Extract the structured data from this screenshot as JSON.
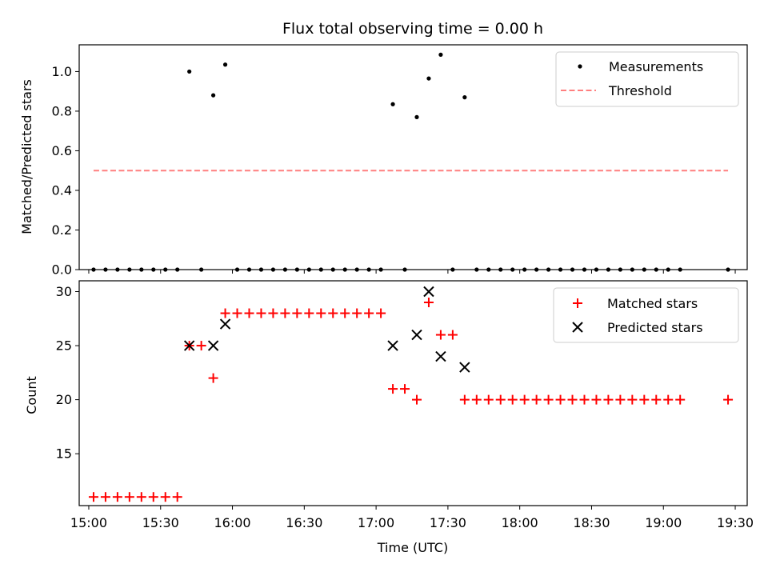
{
  "chart_data": [
    {
      "type": "scatter",
      "title": "Flux total observing time = 0.00 h",
      "xlabel": "",
      "ylabel": "Matched/Predicted stars",
      "ylim": [
        0,
        1.135
      ],
      "yticks": [
        0.0,
        0.2,
        0.4,
        0.6,
        0.8,
        1.0
      ],
      "ytick_labels": [
        "0.0",
        "0.2",
        "0.4",
        "0.6",
        "0.8",
        "1.0"
      ],
      "legend_position": "top-right",
      "grid": false,
      "series": [
        {
          "name": "Measurements",
          "kind": "points",
          "color": "#000000",
          "x": [
            "15:02",
            "15:07",
            "15:12",
            "15:17",
            "15:22",
            "15:27",
            "15:32",
            "15:37",
            "15:42",
            "15:47",
            "15:52",
            "15:57",
            "16:02",
            "16:07",
            "16:12",
            "16:17",
            "16:22",
            "16:27",
            "16:32",
            "16:37",
            "16:42",
            "16:47",
            "16:52",
            "16:57",
            "17:02",
            "17:07",
            "17:12",
            "17:17",
            "17:22",
            "17:27",
            "17:32",
            "17:37",
            "17:42",
            "17:47",
            "17:52",
            "17:57",
            "18:02",
            "18:07",
            "18:12",
            "18:17",
            "18:22",
            "18:27",
            "18:32",
            "18:37",
            "18:42",
            "18:47",
            "18:52",
            "18:57",
            "19:02",
            "19:07",
            "19:27"
          ],
          "y": [
            0,
            0,
            0,
            0,
            0,
            0,
            0,
            0,
            1.0,
            0,
            0.88,
            1.035,
            0,
            0,
            0,
            0,
            0,
            0,
            0,
            0,
            0,
            0,
            0,
            0,
            0,
            0.835,
            0,
            0.77,
            0.965,
            1.085,
            0,
            0.87,
            0,
            0,
            0,
            0,
            0,
            0,
            0,
            0,
            0,
            0,
            0,
            0,
            0,
            0,
            0,
            0,
            0,
            0,
            0
          ]
        },
        {
          "name": "Threshold",
          "kind": "dashed-line",
          "color": "#ff7f7f",
          "x": [
            "15:02",
            "19:27"
          ],
          "y": [
            0.5,
            0.5
          ]
        }
      ]
    },
    {
      "type": "scatter",
      "title": "",
      "xlabel": "Time (UTC)",
      "ylabel": "Count",
      "ylim": [
        10.2,
        31.0
      ],
      "yticks": [
        15,
        20,
        25,
        30
      ],
      "ytick_labels": [
        "15",
        "20",
        "25",
        "30"
      ],
      "xlim": [
        "14:56",
        "19:35"
      ],
      "xticks": [
        "15:00",
        "15:30",
        "16:00",
        "16:30",
        "17:00",
        "17:30",
        "18:00",
        "18:30",
        "19:00",
        "19:30"
      ],
      "xtick_labels": [
        "15:00",
        "15:30",
        "16:00",
        "16:30",
        "17:00",
        "17:30",
        "18:00",
        "18:30",
        "19:00",
        "19:30"
      ],
      "legend_position": "top-right",
      "grid": false,
      "series": [
        {
          "name": "Matched stars",
          "kind": "plus",
          "color": "#ff0000",
          "x": [
            "15:02",
            "15:07",
            "15:12",
            "15:17",
            "15:22",
            "15:27",
            "15:32",
            "15:37",
            "15:42",
            "15:47",
            "15:52",
            "15:57",
            "16:02",
            "16:07",
            "16:12",
            "16:17",
            "16:22",
            "16:27",
            "16:32",
            "16:37",
            "16:42",
            "16:47",
            "16:52",
            "16:57",
            "17:02",
            "17:07",
            "17:12",
            "17:17",
            "17:22",
            "17:27",
            "17:32",
            "17:37",
            "17:42",
            "17:47",
            "17:52",
            "17:57",
            "18:02",
            "18:07",
            "18:12",
            "18:17",
            "18:22",
            "18:27",
            "18:32",
            "18:37",
            "18:42",
            "18:47",
            "18:52",
            "18:57",
            "19:02",
            "19:07",
            "19:27"
          ],
          "y": [
            11,
            11,
            11,
            11,
            11,
            11,
            11,
            11,
            25,
            25,
            22,
            28,
            28,
            28,
            28,
            28,
            28,
            28,
            28,
            28,
            28,
            28,
            28,
            28,
            28,
            21,
            21,
            20,
            29,
            26,
            26,
            20,
            20,
            20,
            20,
            20,
            20,
            20,
            20,
            20,
            20,
            20,
            20,
            20,
            20,
            20,
            20,
            20,
            20,
            20,
            20
          ]
        },
        {
          "name": "Predicted stars",
          "kind": "x",
          "color": "#000000",
          "x": [
            "15:42",
            "15:52",
            "15:57",
            "17:07",
            "17:17",
            "17:22",
            "17:27",
            "17:37"
          ],
          "y": [
            25,
            25,
            27,
            25,
            26,
            30,
            24,
            23
          ]
        }
      ]
    }
  ]
}
